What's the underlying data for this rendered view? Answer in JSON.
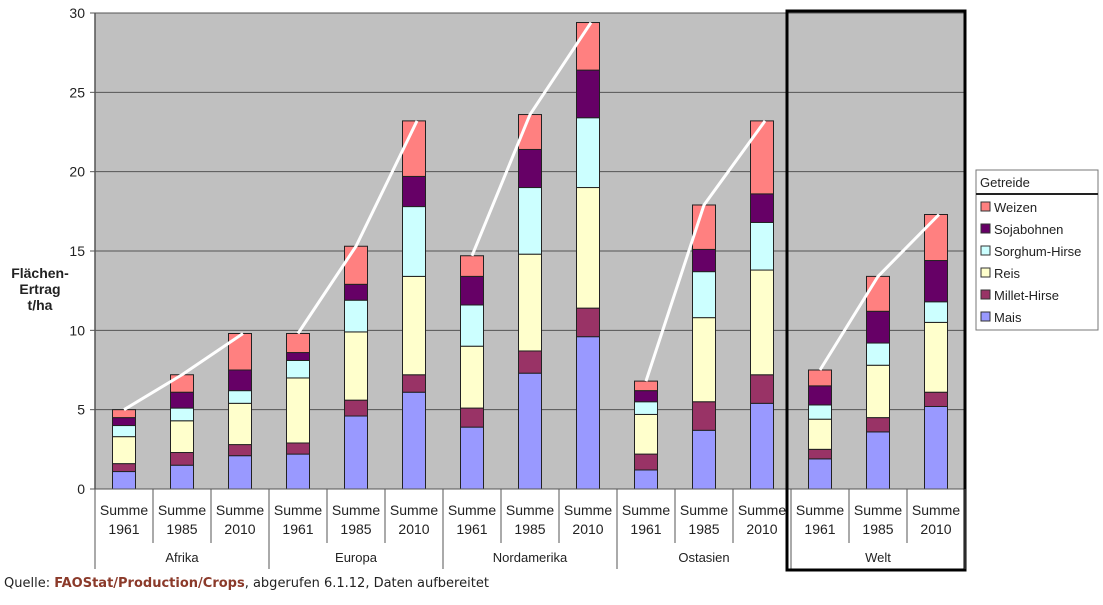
{
  "chart_data": {
    "type": "bar",
    "stacked": true,
    "title": "",
    "ylabel": "Flächen-\nErtrag\nt/ha",
    "ylabel_lines": [
      "Flächen-",
      "Ertrag",
      "t/ha"
    ],
    "xlabel": "",
    "ylim": [
      0,
      30
    ],
    "yticks": [
      0,
      5,
      10,
      15,
      20,
      25,
      30
    ],
    "grid": true,
    "legend_position": "right",
    "legend_title": "Getreide",
    "groups": [
      {
        "name": "Afrika",
        "categories": [
          "Summe 1961",
          "Summe 1985",
          "Summe 2010"
        ]
      },
      {
        "name": "Europa",
        "categories": [
          "Summe 1961",
          "Summe 1985",
          "Summe 2010"
        ]
      },
      {
        "name": "Nordamerika",
        "categories": [
          "Summe 1961",
          "Summe 1985",
          "Summe 2010"
        ]
      },
      {
        "name": "Ostasien",
        "categories": [
          "Summe 1961",
          "Summe 1985",
          "Summe 2010"
        ]
      },
      {
        "name": "Welt",
        "categories": [
          "Summe 1961",
          "Summe 1985",
          "Summe 2010"
        ],
        "highlighted": true
      }
    ],
    "categories": [
      "Afrika Summe 1961",
      "Afrika Summe 1985",
      "Afrika Summe 2010",
      "Europa Summe 1961",
      "Europa Summe 1985",
      "Europa Summe 2010",
      "Nordamerika Summe 1961",
      "Nordamerika Summe 1985",
      "Nordamerika Summe 2010",
      "Ostasien Summe 1961",
      "Ostasien Summe 1985",
      "Ostasien Summe 2010",
      "Welt Summe 1961",
      "Welt Summe 1985",
      "Welt Summe 2010"
    ],
    "series": [
      {
        "name": "Mais",
        "color": "#9999ff",
        "values": [
          1.1,
          1.5,
          2.1,
          2.2,
          4.6,
          6.1,
          3.9,
          7.3,
          9.6,
          1.2,
          3.7,
          5.4,
          1.9,
          3.6,
          5.2
        ]
      },
      {
        "name": "Millet-Hirse",
        "color": "#993366",
        "values": [
          0.5,
          0.8,
          0.7,
          0.7,
          1.0,
          1.1,
          1.2,
          1.4,
          1.8,
          1.0,
          1.8,
          1.8,
          0.6,
          0.9,
          0.9
        ]
      },
      {
        "name": "Reis",
        "color": "#ffffcc",
        "values": [
          1.7,
          2.0,
          2.6,
          4.1,
          4.3,
          6.2,
          3.9,
          6.1,
          7.6,
          2.5,
          5.3,
          6.6,
          1.9,
          3.3,
          4.4
        ]
      },
      {
        "name": "Sorghum-Hirse",
        "color": "#ccffff",
        "values": [
          0.7,
          0.8,
          0.8,
          1.1,
          2.0,
          4.4,
          2.6,
          4.2,
          4.4,
          0.8,
          2.9,
          3.0,
          0.9,
          1.4,
          1.3
        ]
      },
      {
        "name": "Sojabohnen",
        "color": "#660066",
        "values": [
          0.5,
          1.0,
          1.3,
          0.5,
          1.0,
          1.9,
          1.8,
          2.4,
          3.0,
          0.7,
          1.4,
          1.8,
          1.2,
          2.0,
          2.6
        ]
      },
      {
        "name": "Weizen",
        "color": "#ff8080",
        "values": [
          0.5,
          1.1,
          2.3,
          1.2,
          2.4,
          3.5,
          1.3,
          2.2,
          3.0,
          0.6,
          2.8,
          4.6,
          1.0,
          2.2,
          2.9
        ]
      }
    ],
    "legend_order": [
      "Weizen",
      "Sojabohnen",
      "Sorghum-Hirse",
      "Reis",
      "Millet-Hirse",
      "Mais"
    ],
    "trend_lines": "white line connecting tops of 1961-1985-2010 bars within each region",
    "plot_background": "#c0c0c0"
  },
  "source": {
    "prefix": "Quelle: ",
    "link_text": "FAOStat/Production/Crops",
    "suffix": ", abgerufen 6.1.12, Daten aufbereitet"
  }
}
